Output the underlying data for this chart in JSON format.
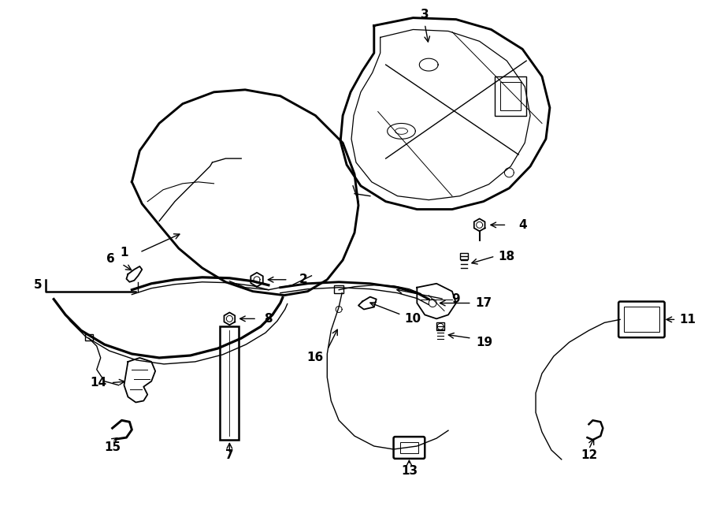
{
  "bg_color": "#ffffff",
  "line_color": "#000000",
  "figsize": [
    9.0,
    6.61
  ],
  "dpi": 100,
  "lw_main": 1.8,
  "lw_thin": 1.0,
  "lw_thick": 2.5,
  "font_size": 11,
  "font_size_small": 9
}
